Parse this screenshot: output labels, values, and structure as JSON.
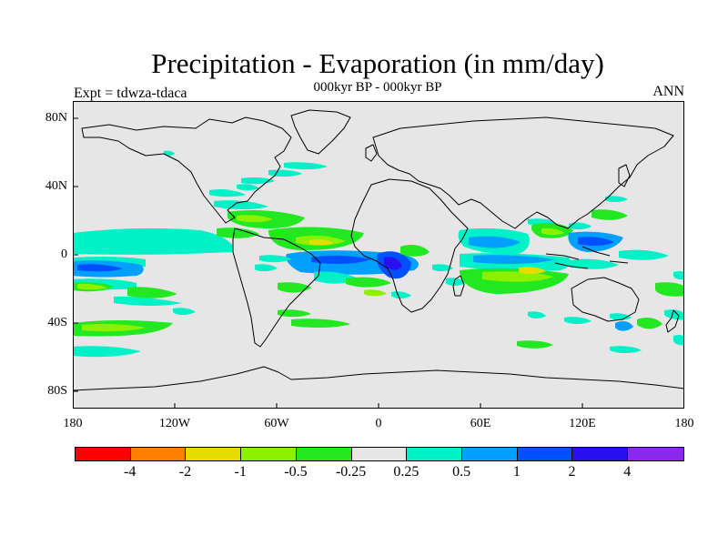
{
  "title": "Precipitation - Evaporation (in mm/day)",
  "subtitle": "000kyr BP - 000kyr BP",
  "experiment": "Expt = tdwza-tdaca",
  "season": "ANN",
  "map": {
    "projection": "cylindrical-equidistant",
    "lon_range": [
      -180,
      180
    ],
    "lat_range": [
      -90,
      90
    ],
    "background_color": "#e6e6e6",
    "coastline_color": "#000000",
    "lat_ticks": [
      {
        "value": 80,
        "label": "80N"
      },
      {
        "value": 40,
        "label": "40N"
      },
      {
        "value": 0,
        "label": "0"
      },
      {
        "value": -40,
        "label": "40S"
      },
      {
        "value": -80,
        "label": "80S"
      }
    ],
    "lon_ticks": [
      {
        "value": -180,
        "label": "180"
      },
      {
        "value": -120,
        "label": "120W"
      },
      {
        "value": -60,
        "label": "60W"
      },
      {
        "value": 0,
        "label": "0"
      },
      {
        "value": 60,
        "label": "60E"
      },
      {
        "value": 120,
        "label": "120E"
      },
      {
        "value": 180,
        "label": "180"
      }
    ]
  },
  "colorbar": {
    "colors": [
      "#ff0000",
      "#ff8000",
      "#e6dc00",
      "#8cf000",
      "#22e822",
      "#e6e6e6",
      "#00f0c8",
      "#00a0ff",
      "#0050ff",
      "#2810f0",
      "#8c28f0"
    ],
    "labels": [
      "-4",
      "-2",
      "-1",
      "-0.5",
      "-0.25",
      "0.25",
      "0.5",
      "1",
      "2",
      "4"
    ]
  }
}
